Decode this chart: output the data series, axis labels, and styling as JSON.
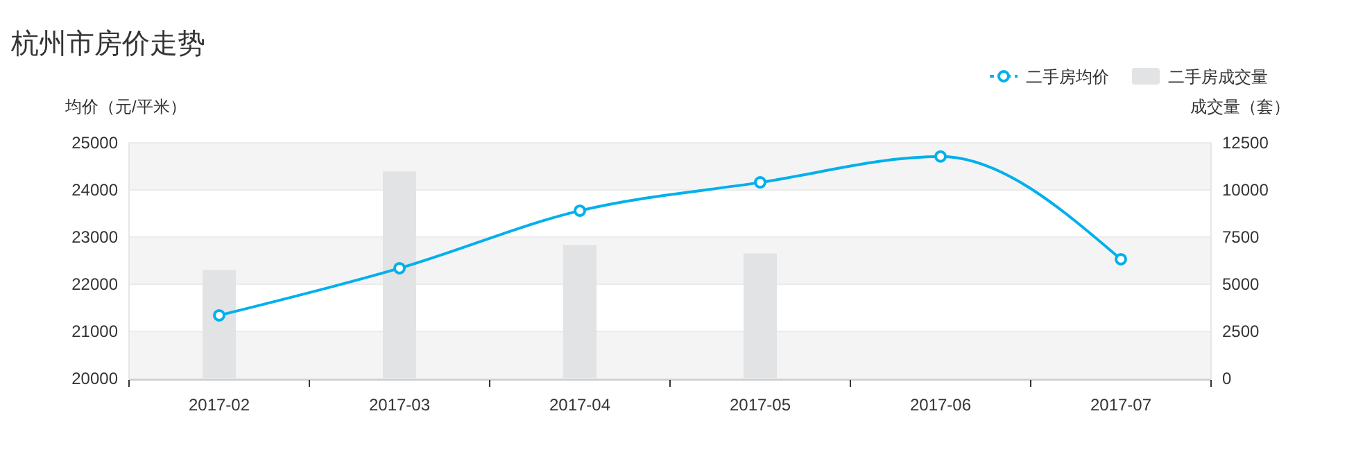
{
  "chart_data": {
    "type": "bar",
    "title": "杭州市房价走势",
    "ylabel": "均价（元/平米）",
    "y2label": "成交量（套）",
    "categories": [
      "2017-02",
      "2017-03",
      "2017-04",
      "2017-05",
      "2017-06",
      "2017-07"
    ],
    "series": [
      {
        "name": "二手房均价",
        "type": "line",
        "color": "#00b0ec",
        "values": [
          21340,
          22340,
          23560,
          24160,
          24710,
          22530
        ]
      },
      {
        "name": "二手房成交量",
        "axis": "y2",
        "color": "#e2e3e5",
        "values": [
          5760,
          10980,
          7080,
          6640,
          null,
          null
        ]
      }
    ],
    "ylim": [
      20000,
      25000
    ],
    "yticks": [
      20000,
      21000,
      22000,
      23000,
      24000,
      25000
    ],
    "y2lim": [
      0,
      12500
    ],
    "y2ticks": [
      0,
      2500,
      5000,
      7500,
      10000,
      12500
    ],
    "grid": "y",
    "legend": "top right",
    "marker": "circle",
    "line_style": "solid"
  }
}
